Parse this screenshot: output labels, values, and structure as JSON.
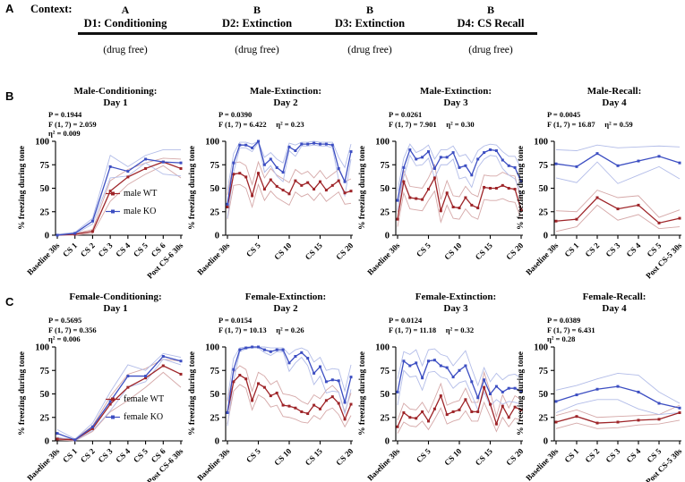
{
  "colors": {
    "wt": "#9e2428",
    "wt_band": "#d5a8a8",
    "ko": "#3c4ec2",
    "ko_band": "#b2bce8",
    "axis": "#000000"
  },
  "panel_a": {
    "label": "A",
    "context_label": "Context:",
    "columns": [
      {
        "context": "A",
        "day": "D1: Conditioning",
        "note": "(drug free)"
      },
      {
        "context": "B",
        "day": "D2: Extinction",
        "note": "(drug free)"
      },
      {
        "context": "B",
        "day": "D3: Extinction",
        "note": "(drug free)"
      },
      {
        "context": "B",
        "day": "D4: CS Recall",
        "note": "(drug free)"
      }
    ]
  },
  "panel_b": {
    "label": "B"
  },
  "panel_c": {
    "label": "C"
  },
  "chart_data": [
    {
      "type": "line",
      "panel": "B",
      "title_line1": "Male-Conditioning:",
      "title_line2": "Day 1",
      "stats_lines": [
        "P = 0.1944",
        "F (1, 7) = 2.059",
        "η² = 0.009"
      ],
      "ylabel": "% freezing during tone",
      "ylim": [
        0,
        100
      ],
      "yticks": [
        0,
        25,
        50,
        75,
        100
      ],
      "n_points": 8,
      "x_tick_labels": [
        "Baseline 30s",
        "CS 1",
        "CS 2",
        "CS 3",
        "CS 4",
        "CS 5",
        "CS 6",
        "Post CS-6 30s"
      ],
      "x_tick_indices": [
        0,
        1,
        2,
        3,
        4,
        5,
        6,
        7
      ],
      "series": [
        {
          "name": "male WT",
          "color_key": "wt",
          "values": [
            0,
            1,
            4,
            47,
            62,
            71,
            78,
            71
          ],
          "sem": [
            1,
            1,
            2,
            11,
            8,
            6,
            4,
            10
          ]
        },
        {
          "name": "male KO",
          "color_key": "ko",
          "values": [
            0,
            2,
            15,
            73,
            68,
            81,
            78,
            77
          ],
          "sem": [
            1,
            1,
            3,
            12,
            5,
            4,
            13,
            14
          ]
        }
      ],
      "legend": [
        "male WT",
        "male KO"
      ]
    },
    {
      "type": "line",
      "panel": "B",
      "title_line1": "Male-Extinction:",
      "title_line2": "Day 2",
      "stats_lines": [
        "P = 0.0390",
        "F (1, 7) = 6.422     η² = 0.23"
      ],
      "ylabel": "% freezing during tone",
      "ylim": [
        0,
        100
      ],
      "yticks": [
        0,
        25,
        50,
        75,
        100
      ],
      "n_points": 21,
      "x_tick_labels": [
        "Baseline 30s",
        "CS 5",
        "CS 10",
        "CS 15",
        "CS 20"
      ],
      "x_tick_indices": [
        0,
        5,
        10,
        15,
        20
      ],
      "series": [
        {
          "name": "male WT",
          "color_key": "wt",
          "values": [
            30,
            65,
            66,
            62,
            42,
            66,
            49,
            59,
            52,
            48,
            44,
            58,
            53,
            56,
            49,
            57,
            48,
            53,
            58,
            45,
            47
          ],
          "sem": [
            13,
            12,
            12,
            12,
            12,
            12,
            12,
            12,
            12,
            12,
            12,
            12,
            12,
            12,
            12,
            12,
            12,
            12,
            12,
            12,
            13
          ]
        },
        {
          "name": "male KO",
          "color_key": "ko",
          "values": [
            33,
            77,
            96,
            96,
            93,
            100,
            75,
            81,
            72,
            67,
            94,
            90,
            97,
            97,
            98,
            97,
            97,
            96,
            71,
            57,
            89
          ],
          "sem": [
            15,
            10,
            3,
            3,
            4,
            1,
            8,
            7,
            9,
            10,
            4,
            6,
            2,
            2,
            2,
            2,
            2,
            3,
            12,
            15,
            8
          ]
        }
      ]
    },
    {
      "type": "line",
      "panel": "B",
      "title_line1": "Male-Extinction:",
      "title_line2": "Day 3",
      "stats_lines": [
        "P = 0.0261",
        "F (1, 7) = 7.901     η² = 0.30"
      ],
      "ylabel": "% freezing during tone",
      "ylim": [
        0,
        100
      ],
      "yticks": [
        0,
        25,
        50,
        75,
        100
      ],
      "n_points": 21,
      "x_tick_labels": [
        "Baseline 30s",
        "CS 5",
        "CS 10",
        "CS 15",
        "CS 20"
      ],
      "x_tick_indices": [
        0,
        5,
        10,
        15,
        20
      ],
      "series": [
        {
          "name": "male WT",
          "color_key": "wt",
          "values": [
            17,
            57,
            40,
            39,
            38,
            49,
            61,
            26,
            45,
            30,
            29,
            40,
            32,
            29,
            51,
            50,
            50,
            53,
            50,
            49,
            27
          ],
          "sem": [
            8,
            12,
            12,
            12,
            12,
            12,
            14,
            12,
            13,
            12,
            12,
            12,
            12,
            12,
            13,
            13,
            13,
            14,
            14,
            14,
            10
          ]
        },
        {
          "name": "male KO",
          "color_key": "ko",
          "values": [
            37,
            72,
            91,
            81,
            83,
            89,
            71,
            83,
            83,
            88,
            72,
            74,
            64,
            81,
            88,
            91,
            90,
            80,
            74,
            72,
            57
          ],
          "sem": [
            10,
            10,
            6,
            7,
            8,
            7,
            10,
            8,
            8,
            7,
            12,
            12,
            13,
            9,
            7,
            6,
            6,
            9,
            10,
            12,
            14
          ]
        }
      ]
    },
    {
      "type": "line",
      "panel": "B",
      "title_line1": "Male-Recall:",
      "title_line2": "Day 4",
      "stats_lines": [
        "P = 0.0045",
        "F (1, 7) = 16.87     η² = 0.59"
      ],
      "ylabel": "% freezing during tone",
      "ylim": [
        0,
        100
      ],
      "yticks": [
        0,
        25,
        50,
        75,
        100
      ],
      "n_points": 7,
      "x_tick_labels": [
        "Baseline 30s",
        "CS 1",
        "CS 2",
        "CS 3",
        "CS 4",
        "CS 5",
        "Post CS-5 30s"
      ],
      "x_tick_indices": [
        0,
        1,
        2,
        3,
        4,
        5,
        6
      ],
      "series": [
        {
          "name": "male WT",
          "color_key": "wt",
          "values": [
            15,
            17,
            40,
            28,
            32,
            13,
            18
          ],
          "sem": [
            11,
            8,
            8,
            12,
            10,
            6,
            9
          ]
        },
        {
          "name": "male KO",
          "color_key": "ko",
          "values": [
            76,
            73,
            87,
            74,
            79,
            84,
            77
          ],
          "sem": [
            15,
            17,
            9,
            19,
            15,
            11,
            17
          ]
        }
      ]
    },
    {
      "type": "line",
      "panel": "C",
      "title_line1": "Female-Conditioning:",
      "title_line2": "Day 1",
      "stats_lines": [
        "P = 0.5695",
        "F (1, 7) = 0.356",
        "η² = 0.006"
      ],
      "ylabel": "% freezing during tone",
      "ylim": [
        0,
        100
      ],
      "yticks": [
        0,
        25,
        50,
        75,
        100
      ],
      "n_points": 8,
      "x_tick_labels": [
        "Baseline 30s",
        "CS 1",
        "CS 2",
        "CS 3",
        "CS 4",
        "CS 5",
        "CS 6",
        "Post CS-6 30s"
      ],
      "x_tick_indices": [
        0,
        1,
        2,
        3,
        4,
        5,
        6,
        7
      ],
      "series": [
        {
          "name": "female WT",
          "color_key": "wt",
          "values": [
            2,
            1,
            13,
            39,
            57,
            67,
            80,
            71
          ],
          "sem": [
            1,
            1,
            3,
            8,
            14,
            10,
            7,
            14
          ]
        },
        {
          "name": "female KO",
          "color_key": "ko",
          "values": [
            8,
            1,
            15,
            42,
            69,
            69,
            90,
            85
          ],
          "sem": [
            4,
            1,
            4,
            10,
            12,
            6,
            3,
            4
          ]
        }
      ],
      "legend": [
        "female WT",
        "female KO"
      ]
    },
    {
      "type": "line",
      "panel": "C",
      "title_line1": "Female-Extinction:",
      "title_line2": "Day 2",
      "stats_lines": [
        "P = 0.0154",
        "F (1, 7) = 10.13     η² = 0.26"
      ],
      "ylabel": "% freezing during tone",
      "ylim": [
        0,
        100
      ],
      "yticks": [
        0,
        25,
        50,
        75,
        100
      ],
      "n_points": 21,
      "x_tick_labels": [
        "Baseline 30s",
        "CS 5",
        "CS 10",
        "CS 15",
        "CS 20"
      ],
      "x_tick_indices": [
        0,
        5,
        10,
        15,
        20
      ],
      "series": [
        {
          "name": "female WT",
          "color_key": "wt",
          "values": [
            30,
            63,
            70,
            66,
            43,
            61,
            57,
            48,
            51,
            38,
            37,
            35,
            31,
            29,
            38,
            34,
            43,
            47,
            40,
            23,
            39
          ],
          "sem": [
            12,
            10,
            10,
            10,
            10,
            12,
            12,
            12,
            13,
            12,
            12,
            12,
            11,
            10,
            11,
            11,
            11,
            12,
            12,
            8,
            12
          ]
        },
        {
          "name": "female KO",
          "color_key": "ko",
          "values": [
            30,
            76,
            97,
            99,
            100,
            100,
            97,
            95,
            97,
            97,
            83,
            90,
            94,
            88,
            72,
            79,
            63,
            65,
            64,
            41,
            68
          ],
          "sem": [
            14,
            12,
            2,
            1,
            1,
            1,
            3,
            4,
            2,
            2,
            9,
            7,
            5,
            8,
            12,
            10,
            12,
            12,
            12,
            12,
            13
          ]
        }
      ]
    },
    {
      "type": "line",
      "panel": "C",
      "title_line1": "Female-Extinction:",
      "title_line2": "Day 3",
      "stats_lines": [
        "P = 0.0124",
        "F (1, 7) = 11.18     η² = 0.32"
      ],
      "ylabel": "% freezing during tone",
      "ylim": [
        0,
        100
      ],
      "yticks": [
        0,
        25,
        50,
        75,
        100
      ],
      "n_points": 21,
      "x_tick_labels": [
        "Baseline 30s",
        "CS 5",
        "CS 10",
        "CS 15",
        "CS 20"
      ],
      "x_tick_indices": [
        0,
        5,
        10,
        15,
        20
      ],
      "series": [
        {
          "name": "female WT",
          "color_key": "wt",
          "values": [
            15,
            30,
            25,
            24,
            31,
            21,
            34,
            48,
            28,
            31,
            33,
            44,
            31,
            31,
            57,
            39,
            18,
            37,
            25,
            36,
            33
          ],
          "sem": [
            7,
            10,
            9,
            9,
            10,
            9,
            11,
            13,
            10,
            10,
            10,
            12,
            10,
            10,
            16,
            13,
            8,
            12,
            10,
            12,
            11
          ]
        },
        {
          "name": "female KO",
          "color_key": "ko",
          "values": [
            52,
            85,
            80,
            83,
            67,
            85,
            86,
            80,
            78,
            68,
            75,
            80,
            63,
            46,
            65,
            50,
            58,
            52,
            56,
            56,
            53
          ],
          "sem": [
            14,
            10,
            12,
            14,
            13,
            12,
            12,
            12,
            12,
            12,
            13,
            16,
            14,
            13,
            13,
            13,
            14,
            13,
            14,
            15,
            14
          ]
        }
      ]
    },
    {
      "type": "line",
      "panel": "C",
      "title_line1": "Female-Recall:",
      "title_line2": "Day 4",
      "stats_lines": [
        "P = 0.0389",
        "F (1, 7) = 6.431",
        "η² = 0.28"
      ],
      "ylabel": "% freezing during tone",
      "ylim": [
        0,
        100
      ],
      "yticks": [
        0,
        25,
        50,
        75,
        100
      ],
      "n_points": 7,
      "x_tick_labels": [
        "Baseline 30s",
        "CS 1",
        "CS 2",
        "CS 3",
        "CS 4",
        "CS 5",
        "Post CS-5 30s"
      ],
      "x_tick_indices": [
        0,
        1,
        2,
        3,
        4,
        5,
        6
      ],
      "series": [
        {
          "name": "female WT",
          "color_key": "wt",
          "values": [
            20,
            26,
            19,
            20,
            22,
            23,
            30
          ],
          "sem": [
            7,
            7,
            6,
            6,
            5,
            5,
            8
          ]
        },
        {
          "name": "female KO",
          "color_key": "ko",
          "values": [
            42,
            49,
            55,
            58,
            52,
            40,
            35
          ],
          "sem": [
            12,
            10,
            11,
            14,
            18,
            12,
            5
          ]
        }
      ]
    }
  ]
}
